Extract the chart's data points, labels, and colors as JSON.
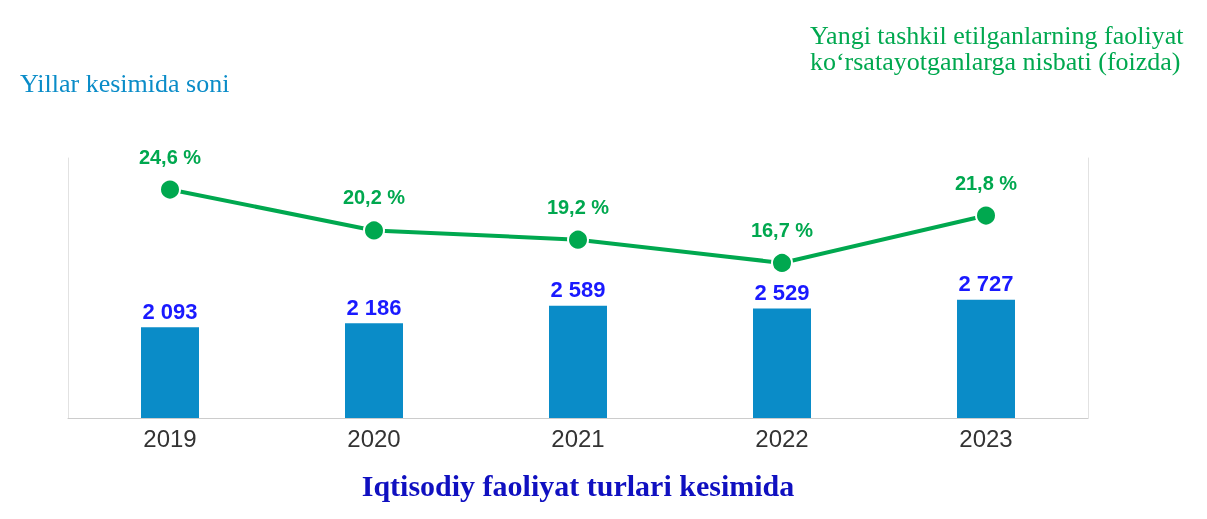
{
  "chart_data": {
    "type": "bar",
    "xlabel": "Iqtisodiy faoliyat turlari kesimida",
    "categories": [
      "2019",
      "2020",
      "2021",
      "2022",
      "2023"
    ],
    "series": [
      {
        "name": "Yillar kesimida soni",
        "color": "#0a8cc8",
        "values": [
          2093,
          2186,
          2589,
          2529,
          2727
        ],
        "value_labels": [
          "2 093",
          "2 186",
          "2 589",
          "2 529",
          "2 727"
        ]
      },
      {
        "type": "line",
        "axis": "y2",
        "name": "Yangi tashkil etilganlarning faoliyat ko‘rsatayotganlarga nisbati (foizda)",
        "color": "#00a84f",
        "values": [
          24.6,
          20.2,
          19.2,
          16.7,
          21.8
        ],
        "value_labels": [
          "24,6 %",
          "20,2 %",
          "19,2 %",
          "16,7 %",
          "21,8 %"
        ]
      }
    ],
    "ylim": [
      0,
      6000
    ],
    "y2lim": [
      0,
      28
    ],
    "tick_labels": "x",
    "data_labels": true,
    "marker": "circle"
  }
}
